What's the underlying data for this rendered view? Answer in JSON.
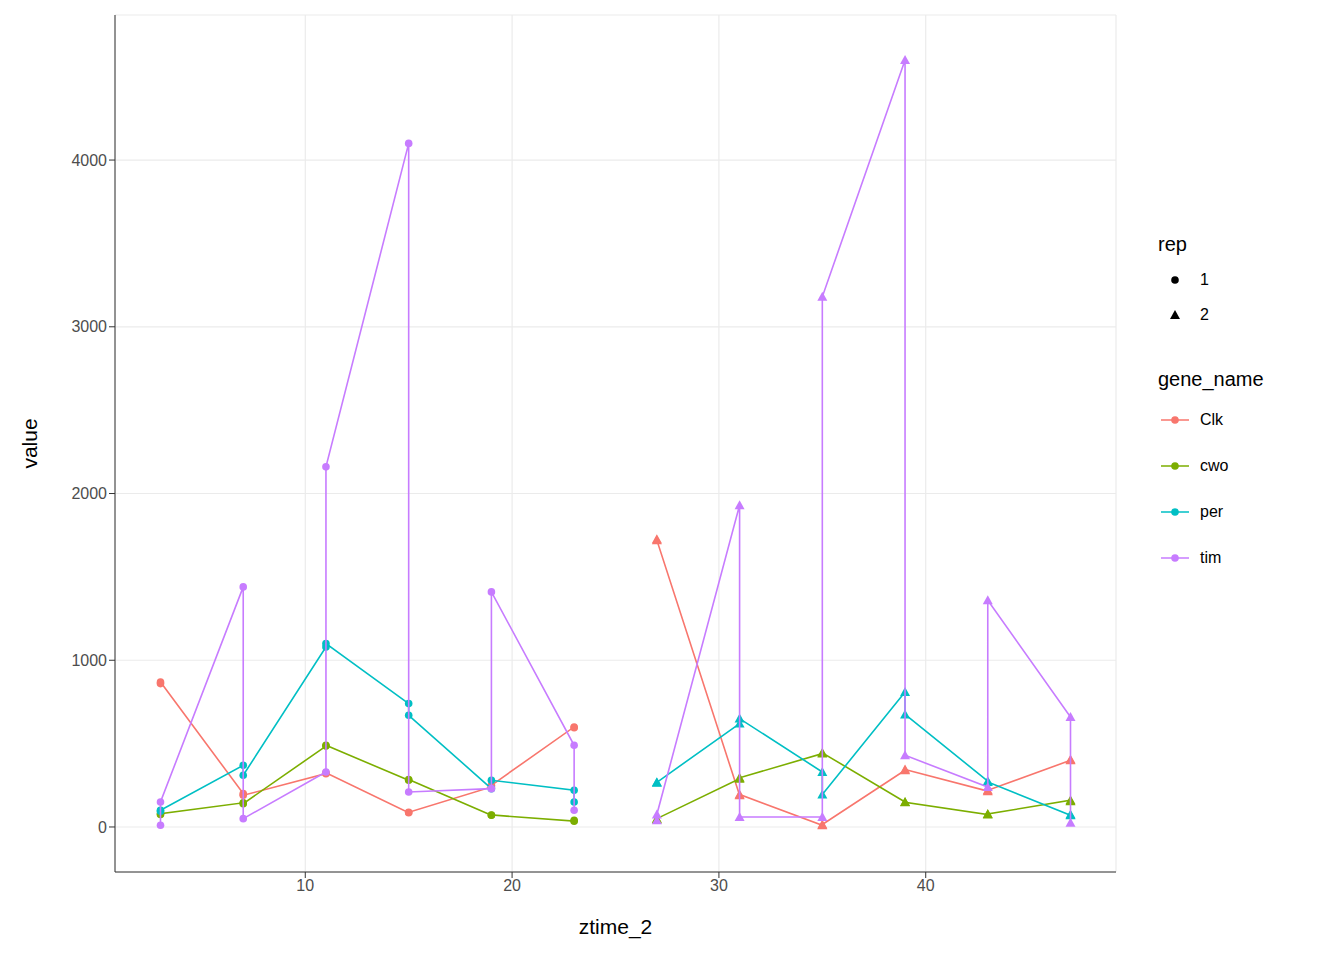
{
  "chart_data": {
    "type": "line",
    "x_label": "ztime_2",
    "y_label": "value",
    "shape_legend_title": "rep",
    "color_legend_title": "gene_name",
    "xlim": [
      0.8,
      49.2
    ],
    "xticks": [
      10,
      20,
      30,
      40
    ],
    "ylim": [
      -270,
      4870
    ],
    "yticks": [
      0,
      1000,
      2000,
      3000,
      4000
    ],
    "grid": true,
    "series": [
      {
        "name": "Clk",
        "rep": "1",
        "color": "#F8766D",
        "marker": "circle",
        "x": [
          3,
          3,
          7,
          7,
          11,
          11,
          15,
          15,
          19,
          19,
          23,
          23
        ],
        "values": [
          860,
          870,
          200,
          190,
          320,
          325,
          85,
          88,
          240,
          250,
          600,
          595
        ]
      },
      {
        "name": "cwo",
        "rep": "1",
        "color": "#7CAE00",
        "marker": "circle",
        "x": [
          3,
          3,
          7,
          7,
          11,
          11,
          15,
          15,
          19,
          19,
          23,
          23
        ],
        "values": [
          75,
          80,
          145,
          140,
          485,
          490,
          280,
          285,
          70,
          72,
          35,
          40
        ]
      },
      {
        "name": "per",
        "rep": "1",
        "color": "#00BFC4",
        "marker": "circle",
        "x": [
          3,
          3,
          7,
          7,
          11,
          11,
          15,
          15,
          19,
          19,
          23,
          23
        ],
        "values": [
          95,
          100,
          370,
          310,
          1080,
          1100,
          740,
          670,
          230,
          280,
          220,
          150
        ]
      },
      {
        "name": "tim",
        "rep": "1",
        "color": "#C77CFF",
        "marker": "circle",
        "x": [
          3,
          3,
          7,
          7,
          11,
          11,
          15,
          15,
          19,
          19,
          23,
          23
        ],
        "values": [
          10,
          150,
          1440,
          50,
          330,
          2160,
          4100,
          210,
          230,
          1410,
          490,
          100
        ]
      },
      {
        "name": "Clk",
        "rep": "2",
        "color": "#F8766D",
        "marker": "triangle",
        "x": [
          27,
          27,
          31,
          31,
          35,
          35,
          39,
          39,
          43,
          43,
          47,
          47
        ],
        "values": [
          1725,
          1720,
          190,
          195,
          10,
          15,
          340,
          345,
          215,
          220,
          400,
          405
        ]
      },
      {
        "name": "cwo",
        "rep": "2",
        "color": "#7CAE00",
        "marker": "triangle",
        "x": [
          27,
          27,
          31,
          31,
          35,
          35,
          39,
          39,
          43,
          43,
          47,
          47
        ],
        "values": [
          45,
          50,
          290,
          295,
          440,
          445,
          150,
          148,
          75,
          78,
          160,
          155
        ]
      },
      {
        "name": "per",
        "rep": "2",
        "color": "#00BFC4",
        "marker": "triangle",
        "x": [
          27,
          27,
          31,
          31,
          35,
          35,
          39,
          39,
          43,
          43,
          47,
          47
        ],
        "values": [
          265,
          268,
          620,
          650,
          330,
          195,
          810,
          675,
          275,
          270,
          70,
          75
        ]
      },
      {
        "name": "tim",
        "rep": "2",
        "color": "#C77CFF",
        "marker": "triangle",
        "x": [
          27,
          27,
          31,
          31,
          35,
          35,
          39,
          39,
          43,
          43,
          47,
          47
        ],
        "values": [
          40,
          75,
          1930,
          60,
          60,
          3180,
          4600,
          430,
          240,
          1360,
          660,
          25
        ]
      }
    ]
  }
}
